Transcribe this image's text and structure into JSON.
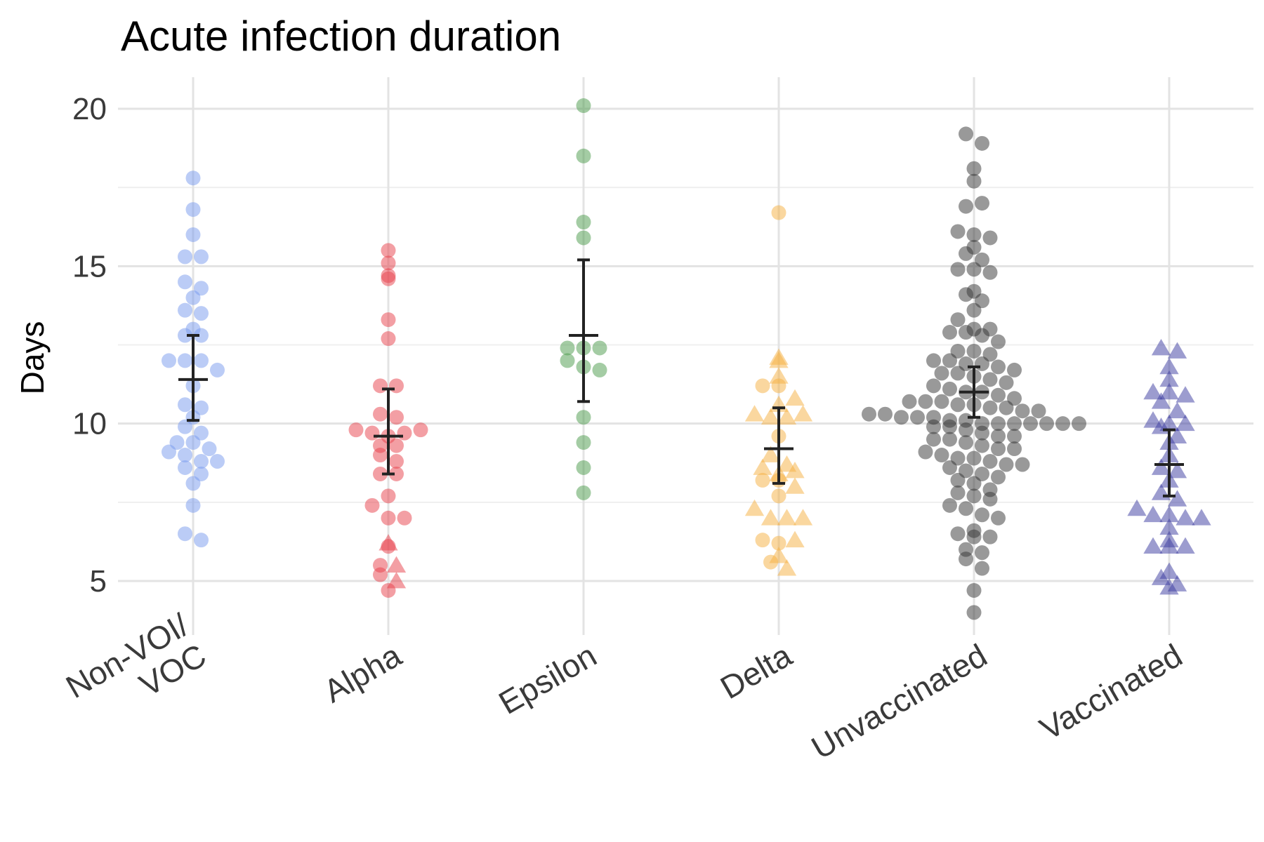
{
  "chart_data": {
    "type": "scatter",
    "title": "Acute infection duration",
    "ylabel": "Days",
    "xlabel": "",
    "ylim": [
      3.5,
      21.0
    ],
    "yticks": [
      5,
      10,
      15,
      20
    ],
    "yticks_minor": [
      7.5,
      12.5,
      17.5
    ],
    "grid": true,
    "legend": "none",
    "categories": [
      {
        "label_lines": [
          "Non-VOI/",
          "VOC"
        ],
        "color": "#7799ee",
        "shape": "circle"
      },
      {
        "label_lines": [
          "Alpha"
        ],
        "color": "#e8404a",
        "shape": "mixed"
      },
      {
        "label_lines": [
          "Epsilon"
        ],
        "color": "#4a9a4a",
        "shape": "circle"
      },
      {
        "label_lines": [
          "Delta"
        ],
        "color": "#f5b040",
        "shape": "mixed"
      },
      {
        "label_lines": [
          "Unvaccinated"
        ],
        "color": "#333333",
        "shape": "circle"
      },
      {
        "label_lines": [
          "Vaccinated"
        ],
        "color": "#3a3aa0",
        "shape": "triangle"
      }
    ],
    "summary": [
      {
        "category": "Non-VOI/VOC",
        "mean": 11.4,
        "lower": 10.1,
        "upper": 12.8
      },
      {
        "category": "Alpha",
        "mean": 9.6,
        "lower": 8.4,
        "upper": 11.1
      },
      {
        "category": "Epsilon",
        "mean": 12.8,
        "lower": 10.7,
        "upper": 15.2
      },
      {
        "category": "Delta",
        "mean": 9.2,
        "lower": 8.1,
        "upper": 10.5
      },
      {
        "category": "Unvaccinated",
        "mean": 11.0,
        "lower": 10.2,
        "upper": 11.8
      },
      {
        "category": "Vaccinated",
        "mean": 8.7,
        "lower": 7.7,
        "upper": 9.8
      }
    ],
    "points": [
      {
        "category": "Non-VOI/VOC",
        "circle": [
          17.8,
          16.8,
          16.0,
          15.3,
          15.3,
          14.5,
          14.3,
          14.0,
          13.6,
          13.5,
          13.0,
          12.8,
          12.8,
          12.0,
          12.0,
          12.0,
          11.7,
          11.2,
          10.6,
          10.5,
          10.2,
          9.9,
          9.7,
          9.4,
          9.4,
          9.2,
          9.1,
          9.0,
          8.8,
          8.8,
          8.6,
          8.4,
          8.1,
          7.4,
          6.5,
          6.3
        ],
        "triangle": []
      },
      {
        "category": "Alpha",
        "circle": [
          15.5,
          15.1,
          14.6,
          14.7,
          13.3,
          12.7,
          11.2,
          11.2,
          10.3,
          10.2,
          9.8,
          9.7,
          9.6,
          9.7,
          9.8,
          9.3,
          9.3,
          9.0,
          8.8,
          8.4,
          8.4,
          7.7,
          7.4,
          7.0,
          7.0,
          6.1,
          5.5,
          5.2,
          4.7
        ],
        "triangle": [
          6.2,
          5.5,
          5.0
        ]
      },
      {
        "category": "Epsilon",
        "circle": [
          20.1,
          18.5,
          16.4,
          15.9,
          12.4,
          12.4,
          12.4,
          12.0,
          11.8,
          11.7,
          10.2,
          9.4,
          8.6,
          7.8
        ],
        "triangle": []
      },
      {
        "category": "Delta",
        "circle": [
          16.7,
          11.2,
          11.2,
          9.6,
          8.2,
          8.2,
          7.7,
          6.3,
          6.2,
          5.6
        ],
        "triangle": [
          12.1,
          12.0,
          11.5,
          10.8,
          10.6,
          10.3,
          10.2,
          10.2,
          10.3,
          9.0,
          8.7,
          8.6,
          8.4,
          8.5,
          8.0,
          7.3,
          7.0,
          7.0,
          7.0,
          6.3,
          5.8,
          5.4
        ]
      },
      {
        "category": "Unvaccinated",
        "circle": [
          19.2,
          18.9,
          18.1,
          17.7,
          16.9,
          17.0,
          16.1,
          16.0,
          15.9,
          15.6,
          15.4,
          15.2,
          14.9,
          14.9,
          14.8,
          14.2,
          14.1,
          13.9,
          13.6,
          13.3,
          13.0,
          13.0,
          12.9,
          12.9,
          12.8,
          12.6,
          12.3,
          12.3,
          12.2,
          12.0,
          12.0,
          11.9,
          11.9,
          11.8,
          11.7,
          11.6,
          11.6,
          11.5,
          11.4,
          11.3,
          11.2,
          11.1,
          11.0,
          11.0,
          10.9,
          10.8,
          10.7,
          10.7,
          10.7,
          10.6,
          10.6,
          10.5,
          10.5,
          10.4,
          10.4,
          10.3,
          10.3,
          10.2,
          10.2,
          10.2,
          10.1,
          10.1,
          10.0,
          10.0,
          10.0,
          10.0,
          10.0,
          10.0,
          10.0,
          9.9,
          9.9,
          9.8,
          9.7,
          9.6,
          9.6,
          9.5,
          9.5,
          9.4,
          9.3,
          9.2,
          9.2,
          9.1,
          9.0,
          8.9,
          8.9,
          8.8,
          8.7,
          8.7,
          8.6,
          8.5,
          8.4,
          8.3,
          8.2,
          8.1,
          7.9,
          7.8,
          7.7,
          7.6,
          7.4,
          7.3,
          7.1,
          7.0,
          6.6,
          6.5,
          6.4,
          6.4,
          6.0,
          5.9,
          5.7,
          5.4,
          4.7,
          4.0
        ],
        "triangle": []
      },
      {
        "category": "Vaccinated",
        "circle": [],
        "triangle": [
          12.4,
          12.3,
          11.8,
          11.4,
          11.0,
          11.0,
          10.9,
          10.7,
          10.4,
          10.1,
          10.0,
          10.0,
          9.9,
          9.6,
          9.4,
          9.0,
          8.6,
          8.5,
          8.2,
          7.8,
          7.6,
          7.3,
          7.1,
          7.1,
          7.0,
          7.0,
          6.7,
          6.3,
          6.1,
          6.1,
          6.1,
          5.3,
          5.1,
          4.9,
          4.8
        ]
      }
    ]
  }
}
